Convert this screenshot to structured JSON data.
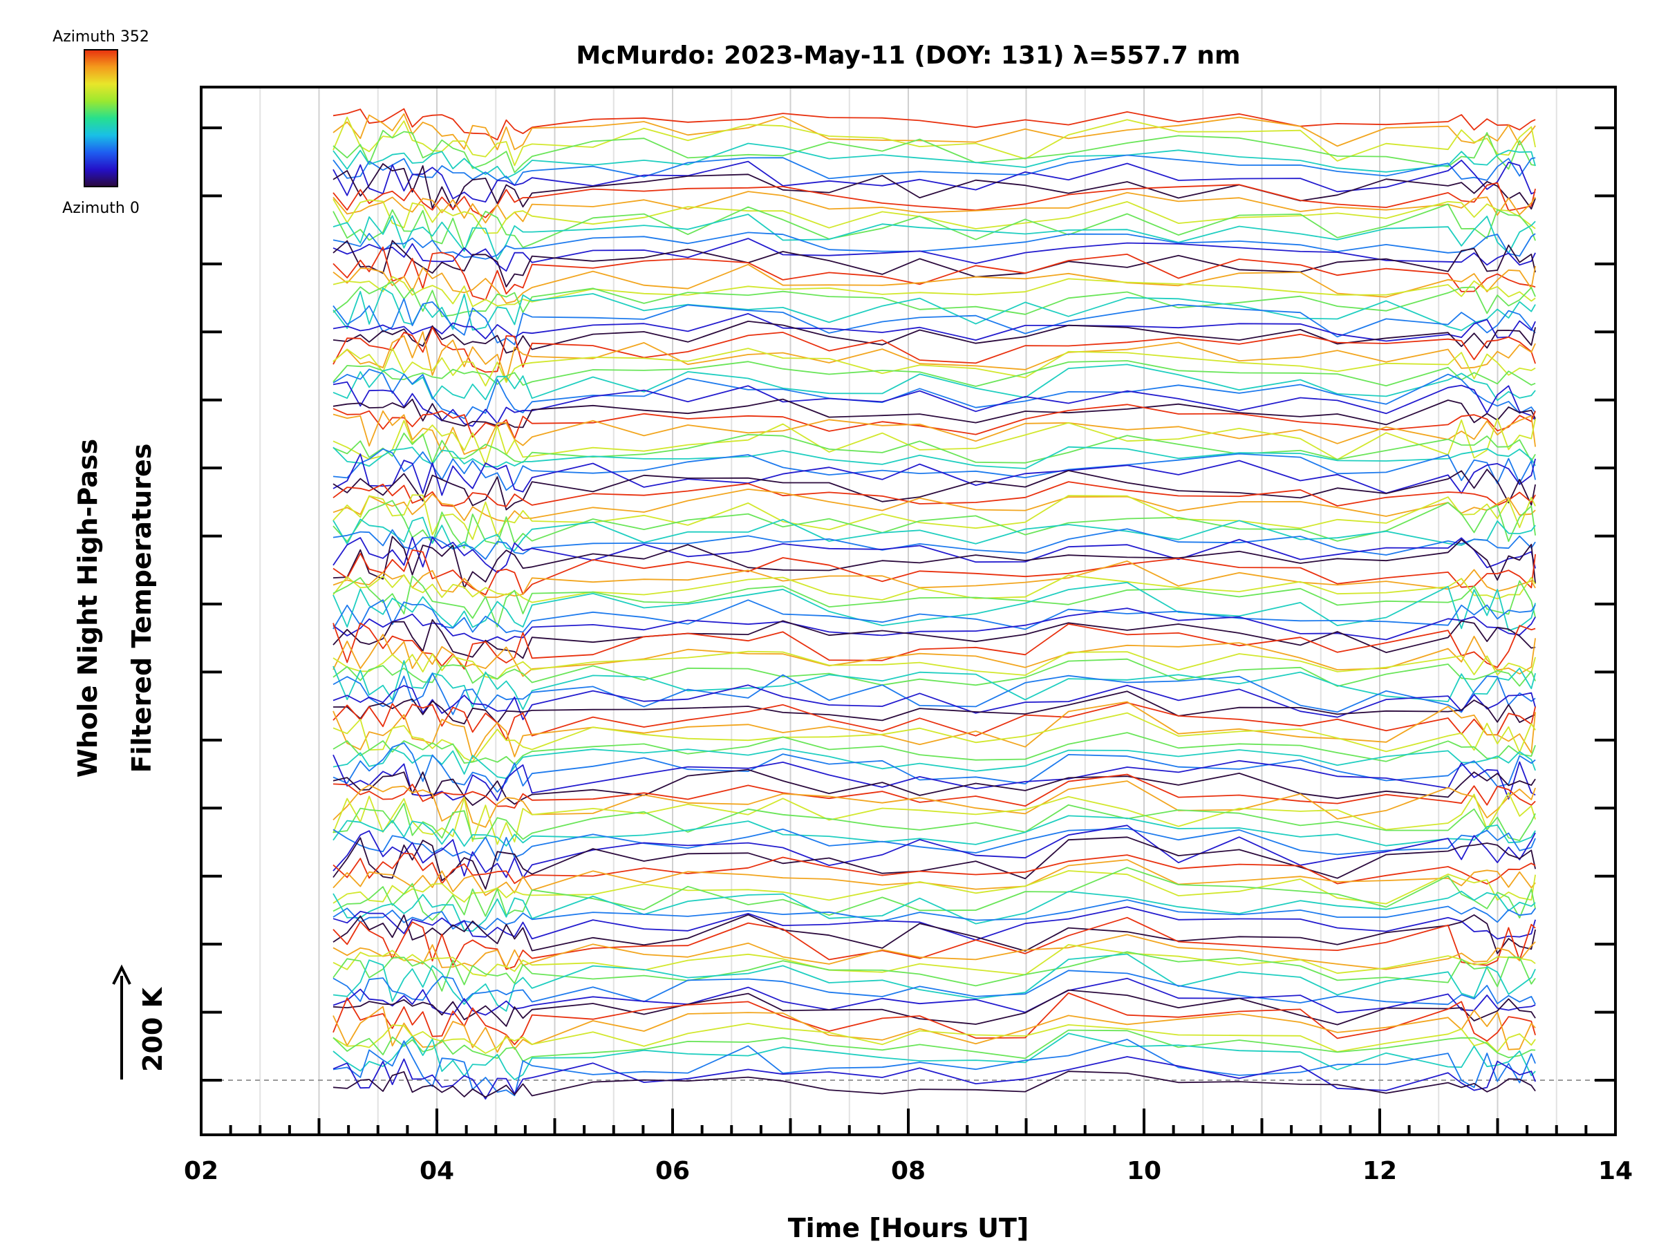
{
  "chart_data": {
    "type": "line",
    "title": "McMurdo: 2023-May-11 (DOY: 131) λ=557.7 nm",
    "xlabel": "Time [Hours UT]",
    "ylabel_lines": [
      "Whole Night High-Pass",
      "Filtered Temperatures"
    ],
    "scale_label": "200 K",
    "x_tick_labels": [
      "02",
      "04",
      "06",
      "08",
      "10",
      "12",
      "14"
    ],
    "xlim": [
      2,
      14
    ],
    "x_start": 3.12,
    "x_end": 13.32,
    "colorbar": {
      "top_label": "Azimuth 352",
      "bottom_label": "Azimuth 0",
      "colors": [
        "#2b0a3d",
        "#2410c8",
        "#1e5ef0",
        "#19c0e6",
        "#27e08e",
        "#9be830",
        "#e8e62a",
        "#f49a1c",
        "#e8300e"
      ]
    },
    "grid": true,
    "legend": "colorbar top-left",
    "zenith_group_count": 13,
    "azimuths_per_group": 8
  }
}
